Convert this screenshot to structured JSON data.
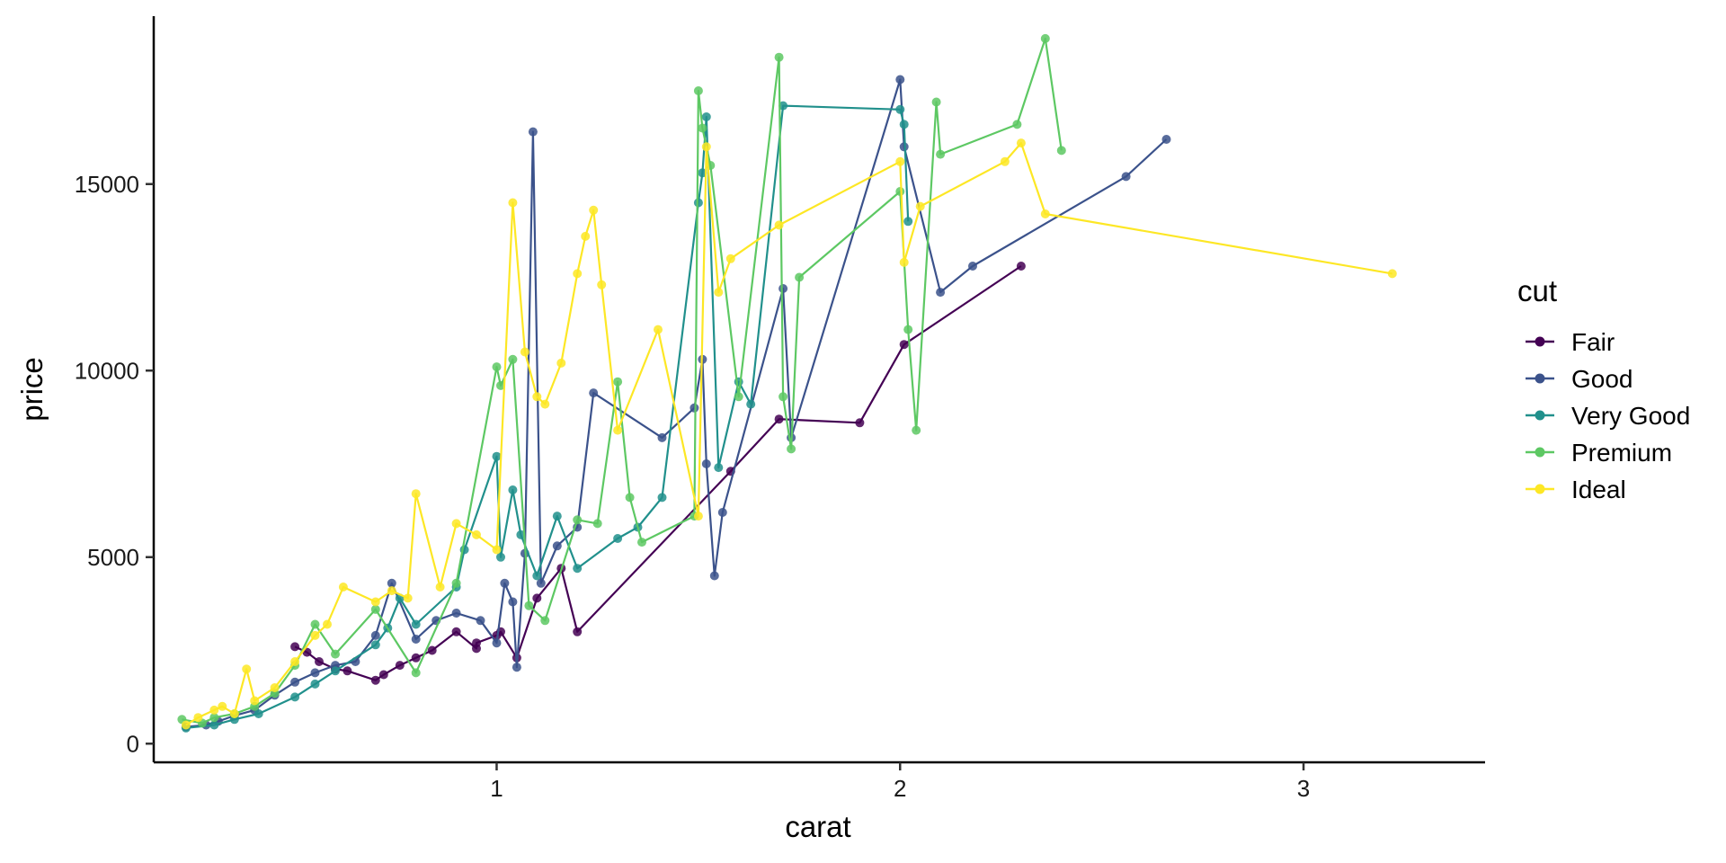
{
  "chart_data": {
    "type": "line",
    "title": "",
    "xlabel": "carat",
    "ylabel": "price",
    "xlim": [
      0.15,
      3.45
    ],
    "ylim": [
      -500,
      19500
    ],
    "x_ticks": [
      1,
      2,
      3
    ],
    "y_ticks": [
      0,
      5000,
      10000,
      15000
    ],
    "legend_title": "cut",
    "legend_position": "right",
    "series": [
      {
        "name": "Fair",
        "color": "#440154",
        "x": [
          0.5,
          0.53,
          0.56,
          0.6,
          0.63,
          0.7,
          0.72,
          0.76,
          0.8,
          0.84,
          0.9,
          0.95,
          0.95,
          1.0,
          1.01,
          1.05,
          1.1,
          1.16,
          1.2,
          1.58,
          1.7,
          1.9,
          2.01,
          2.3
        ],
        "y": [
          2600,
          2450,
          2200,
          2000,
          1950,
          1700,
          1850,
          2100,
          2300,
          2500,
          3000,
          2550,
          2700,
          2900,
          3000,
          2300,
          3900,
          4700,
          3000,
          7300,
          8700,
          8600,
          10700,
          12800
        ]
      },
      {
        "name": "Good",
        "color": "#3b528b",
        "x": [
          0.23,
          0.28,
          0.31,
          0.35,
          0.4,
          0.45,
          0.5,
          0.55,
          0.6,
          0.65,
          0.7,
          0.74,
          0.8,
          0.85,
          0.9,
          0.96,
          1.0,
          1.02,
          1.04,
          1.05,
          1.07,
          1.09,
          1.11,
          1.15,
          1.2,
          1.24,
          1.41,
          1.49,
          1.51,
          1.52,
          1.54,
          1.56,
          1.71,
          1.73,
          2.0,
          2.01,
          2.1,
          2.18,
          2.56,
          2.66
        ],
        "y": [
          450,
          500,
          600,
          750,
          900,
          1300,
          1650,
          1900,
          2100,
          2200,
          2900,
          4300,
          2800,
          3300,
          3500,
          3300,
          2700,
          4300,
          3800,
          2050,
          5100,
          16400,
          4300,
          5300,
          5800,
          9400,
          8200,
          9000,
          10300,
          7500,
          4500,
          6200,
          12200,
          8200,
          17800,
          16000,
          12100,
          12800,
          15200,
          16200
        ]
      },
      {
        "name": "Very Good",
        "color": "#21908c",
        "x": [
          0.23,
          0.3,
          0.35,
          0.41,
          0.5,
          0.55,
          0.6,
          0.7,
          0.73,
          0.76,
          0.8,
          0.9,
          0.92,
          1.0,
          1.01,
          1.04,
          1.06,
          1.1,
          1.15,
          1.2,
          1.3,
          1.35,
          1.41,
          1.5,
          1.51,
          1.52,
          1.55,
          1.6,
          1.63,
          1.71,
          2.0,
          2.01,
          2.02
        ],
        "y": [
          420,
          500,
          650,
          800,
          1250,
          1600,
          1950,
          2650,
          3100,
          3900,
          3200,
          4200,
          5200,
          7700,
          5000,
          6800,
          5600,
          4500,
          6100,
          4700,
          5500,
          5800,
          6600,
          14500,
          15300,
          16800,
          7400,
          9700,
          9100,
          17100,
          17000,
          16600,
          14000
        ]
      },
      {
        "name": "Premium",
        "color": "#5dc863",
        "x": [
          0.22,
          0.27,
          0.3,
          0.35,
          0.4,
          0.45,
          0.5,
          0.55,
          0.6,
          0.7,
          0.8,
          0.9,
          1.0,
          1.01,
          1.04,
          1.08,
          1.12,
          1.2,
          1.25,
          1.3,
          1.33,
          1.36,
          1.49,
          1.5,
          1.51,
          1.53,
          1.6,
          1.7,
          1.71,
          1.73,
          1.75,
          2.0,
          2.02,
          2.04,
          2.09,
          2.1,
          2.29,
          2.36,
          2.4
        ],
        "y": [
          650,
          550,
          700,
          800,
          1000,
          1350,
          2100,
          3200,
          2400,
          3600,
          1900,
          4300,
          10100,
          9600,
          10300,
          3700,
          3300,
          6000,
          5900,
          9700,
          6600,
          5400,
          6100,
          17500,
          16500,
          15500,
          9300,
          18400,
          9300,
          7900,
          12500,
          14800,
          11100,
          8400,
          17200,
          15800,
          16600,
          18900,
          15900
        ]
      },
      {
        "name": "Ideal",
        "color": "#fde725",
        "x": [
          0.23,
          0.26,
          0.3,
          0.32,
          0.35,
          0.38,
          0.4,
          0.45,
          0.5,
          0.55,
          0.58,
          0.62,
          0.7,
          0.74,
          0.78,
          0.8,
          0.86,
          0.9,
          0.95,
          1.0,
          1.04,
          1.07,
          1.1,
          1.12,
          1.16,
          1.2,
          1.22,
          1.24,
          1.26,
          1.3,
          1.4,
          1.5,
          1.52,
          1.55,
          1.58,
          1.7,
          2.0,
          2.01,
          2.05,
          2.26,
          2.3,
          2.36,
          3.22
        ],
        "y": [
          500,
          700,
          900,
          1000,
          800,
          2000,
          1150,
          1500,
          2200,
          2900,
          3200,
          4200,
          3800,
          4100,
          3900,
          6700,
          4200,
          5900,
          5600,
          5200,
          14500,
          10500,
          9300,
          9100,
          10200,
          12600,
          13600,
          14300,
          12300,
          8400,
          11100,
          6100,
          16000,
          12100,
          13000,
          13900,
          15600,
          12900,
          14400,
          15600,
          16100,
          14200,
          12600
        ]
      }
    ]
  }
}
